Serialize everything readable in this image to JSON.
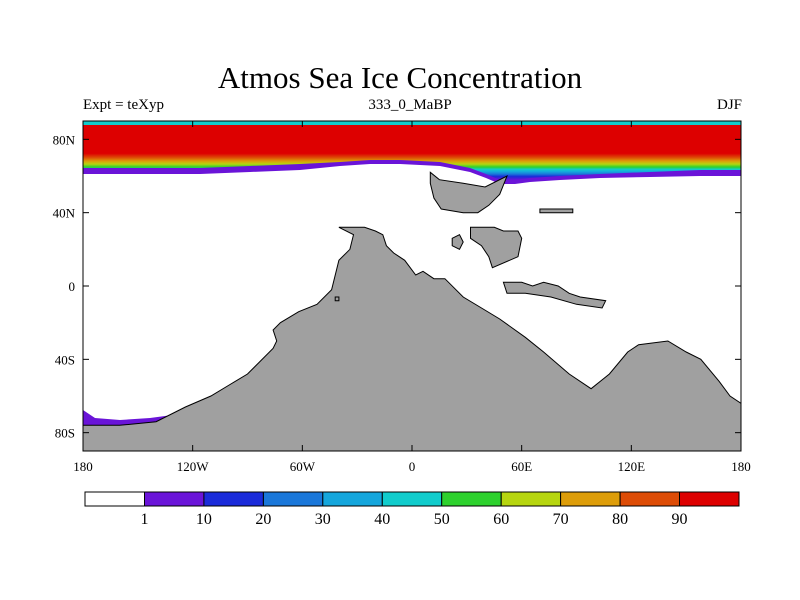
{
  "title": "Atmos Sea Ice Concentration",
  "left_subtitle": "Expt = teXyp",
  "center_subtitle": "333_0_MaBP",
  "right_subtitle": "DJF",
  "colors": {
    "land": "#a0a0a0",
    "ice_levels": [
      "#ffffff",
      "#6a14d8",
      "#1a2bd9",
      "#1a77d9",
      "#15a6dc",
      "#11cccc",
      "#2ed12e",
      "#b6d50f",
      "#dd9d09",
      "#dd4c06",
      "#dd0000"
    ]
  },
  "chart_data": {
    "type": "heatmap",
    "title": "Atmos Sea Ice Concentration",
    "x_ticks": [
      "180",
      "120W",
      "60W",
      "0",
      "60E",
      "120E",
      "180"
    ],
    "y_ticks": [
      "80N",
      "40N",
      "0",
      "40S",
      "80S"
    ],
    "xlim": [
      -180,
      180
    ],
    "ylim": [
      -90,
      90
    ],
    "colorbar": {
      "levels": [
        1,
        10,
        20,
        30,
        40,
        50,
        60,
        70,
        80,
        90
      ],
      "labels": [
        "1",
        "10",
        "20",
        "30",
        "40",
        "50",
        "60",
        "70",
        "80",
        "90"
      ]
    },
    "north_ice_bands": [
      {
        "level": 1,
        "edge_lat_min": 60,
        "edge_lat_max": 64
      },
      {
        "level": 90,
        "edge_lat_min": 68,
        "edge_lat_max": 76
      }
    ],
    "land": [
      {
        "name": "north-asia",
        "points": [
          [
            10,
            62
          ],
          [
            15,
            58
          ],
          [
            28,
            56
          ],
          [
            40,
            54
          ],
          [
            52,
            60
          ],
          [
            48,
            50
          ],
          [
            42,
            44
          ],
          [
            36,
            40
          ],
          [
            28,
            40
          ],
          [
            16,
            42
          ],
          [
            12,
            48
          ],
          [
            10,
            56
          ]
        ]
      },
      {
        "name": "east-asia",
        "points": [
          [
            70,
            40
          ],
          [
            88,
            40
          ],
          [
            88,
            42
          ],
          [
            70,
            42
          ]
        ]
      },
      {
        "name": "tibet",
        "points": [
          [
            32,
            32
          ],
          [
            45,
            32
          ],
          [
            50,
            30
          ],
          [
            58,
            30
          ],
          [
            60,
            26
          ],
          [
            58,
            16
          ],
          [
            44,
            10
          ],
          [
            42,
            16
          ],
          [
            38,
            22
          ],
          [
            32,
            26
          ]
        ]
      },
      {
        "name": "india",
        "points": [
          [
            22,
            26
          ],
          [
            26,
            28
          ],
          [
            28,
            24
          ],
          [
            26,
            20
          ],
          [
            22,
            22
          ]
        ]
      },
      {
        "name": "africa-south-america",
        "points": [
          [
            -40,
            32
          ],
          [
            -26,
            32
          ],
          [
            -20,
            30
          ],
          [
            -16,
            28
          ],
          [
            -14,
            22
          ],
          [
            -10,
            18
          ],
          [
            -4,
            14
          ],
          [
            2,
            6
          ],
          [
            6,
            8
          ],
          [
            12,
            4
          ],
          [
            18,
            4
          ],
          [
            28,
            -6
          ],
          [
            38,
            -12
          ],
          [
            48,
            -18
          ],
          [
            62,
            -28
          ],
          [
            72,
            -36
          ],
          [
            86,
            -48
          ],
          [
            98,
            -56
          ],
          [
            108,
            -48
          ],
          [
            118,
            -36
          ],
          [
            124,
            -32
          ],
          [
            140,
            -30
          ],
          [
            150,
            -36
          ],
          [
            158,
            -40
          ],
          [
            168,
            -52
          ],
          [
            174,
            -60
          ],
          [
            180,
            -64
          ],
          [
            180,
            -90
          ],
          [
            -180,
            -90
          ],
          [
            -180,
            -76
          ],
          [
            -160,
            -76
          ],
          [
            -140,
            -74
          ],
          [
            -124,
            -66
          ],
          [
            -110,
            -60
          ],
          [
            -100,
            -54
          ],
          [
            -90,
            -48
          ],
          [
            -84,
            -42
          ],
          [
            -76,
            -34
          ],
          [
            -74,
            -30
          ],
          [
            -76,
            -24
          ],
          [
            -72,
            -20
          ],
          [
            -62,
            -14
          ],
          [
            -52,
            -10
          ],
          [
            -44,
            -2
          ],
          [
            -40,
            14
          ],
          [
            -34,
            20
          ],
          [
            -32,
            28
          ]
        ]
      },
      {
        "name": "small-island",
        "points": [
          [
            -42,
            -6
          ],
          [
            -40,
            -6
          ],
          [
            -40,
            -8
          ],
          [
            -42,
            -8
          ]
        ]
      },
      {
        "name": "australia",
        "points": [
          [
            50,
            2
          ],
          [
            60,
            2
          ],
          [
            66,
            0
          ],
          [
            72,
            2
          ],
          [
            80,
            0
          ],
          [
            86,
            -4
          ],
          [
            92,
            -6
          ],
          [
            106,
            -8
          ],
          [
            104,
            -12
          ],
          [
            90,
            -10
          ],
          [
            76,
            -6
          ],
          [
            62,
            -4
          ],
          [
            52,
            -4
          ]
        ]
      }
    ]
  }
}
